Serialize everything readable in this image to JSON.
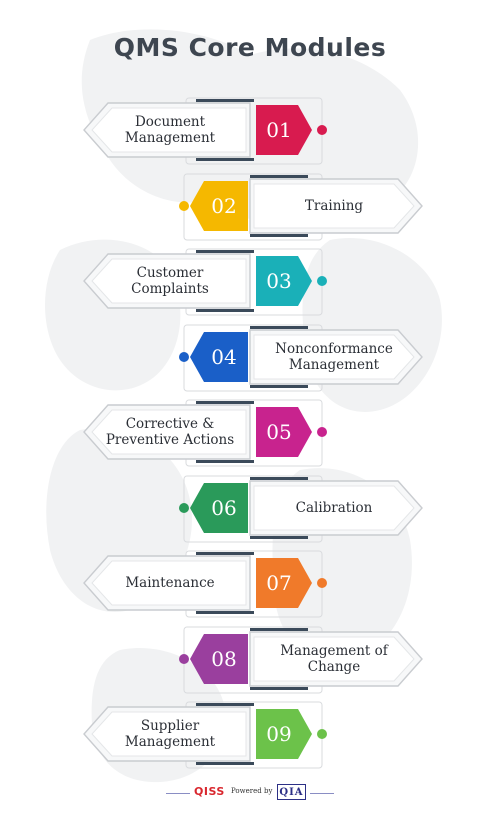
{
  "title": "QMS Core Modules",
  "modules": [
    {
      "number": "01",
      "label": "Document\nManagement",
      "color": "#d81b4f",
      "side": "left"
    },
    {
      "number": "02",
      "label": "Training",
      "color": "#f5b800",
      "side": "right"
    },
    {
      "number": "03",
      "label": "Customer\nComplaints",
      "color": "#1ab0b8",
      "side": "left"
    },
    {
      "number": "04",
      "label": "Nonconformance\nManagement",
      "color": "#1a5fc8",
      "side": "right"
    },
    {
      "number": "05",
      "label": "Corrective &\nPreventive Actions",
      "color": "#c8238e",
      "side": "left"
    },
    {
      "number": "06",
      "label": "Calibration",
      "color": "#2a9a5a",
      "side": "right"
    },
    {
      "number": "07",
      "label": "Maintenance",
      "color": "#f07a2a",
      "side": "left"
    },
    {
      "number": "08",
      "label": "Management of\nChange",
      "color": "#9a3f9e",
      "side": "right"
    },
    {
      "number": "09",
      "label": "Supplier\nManagement",
      "color": "#6cc24a",
      "side": "left"
    }
  ],
  "footer": {
    "brand": "QISS",
    "powered_by": "Powered by",
    "partner": "QIA"
  }
}
